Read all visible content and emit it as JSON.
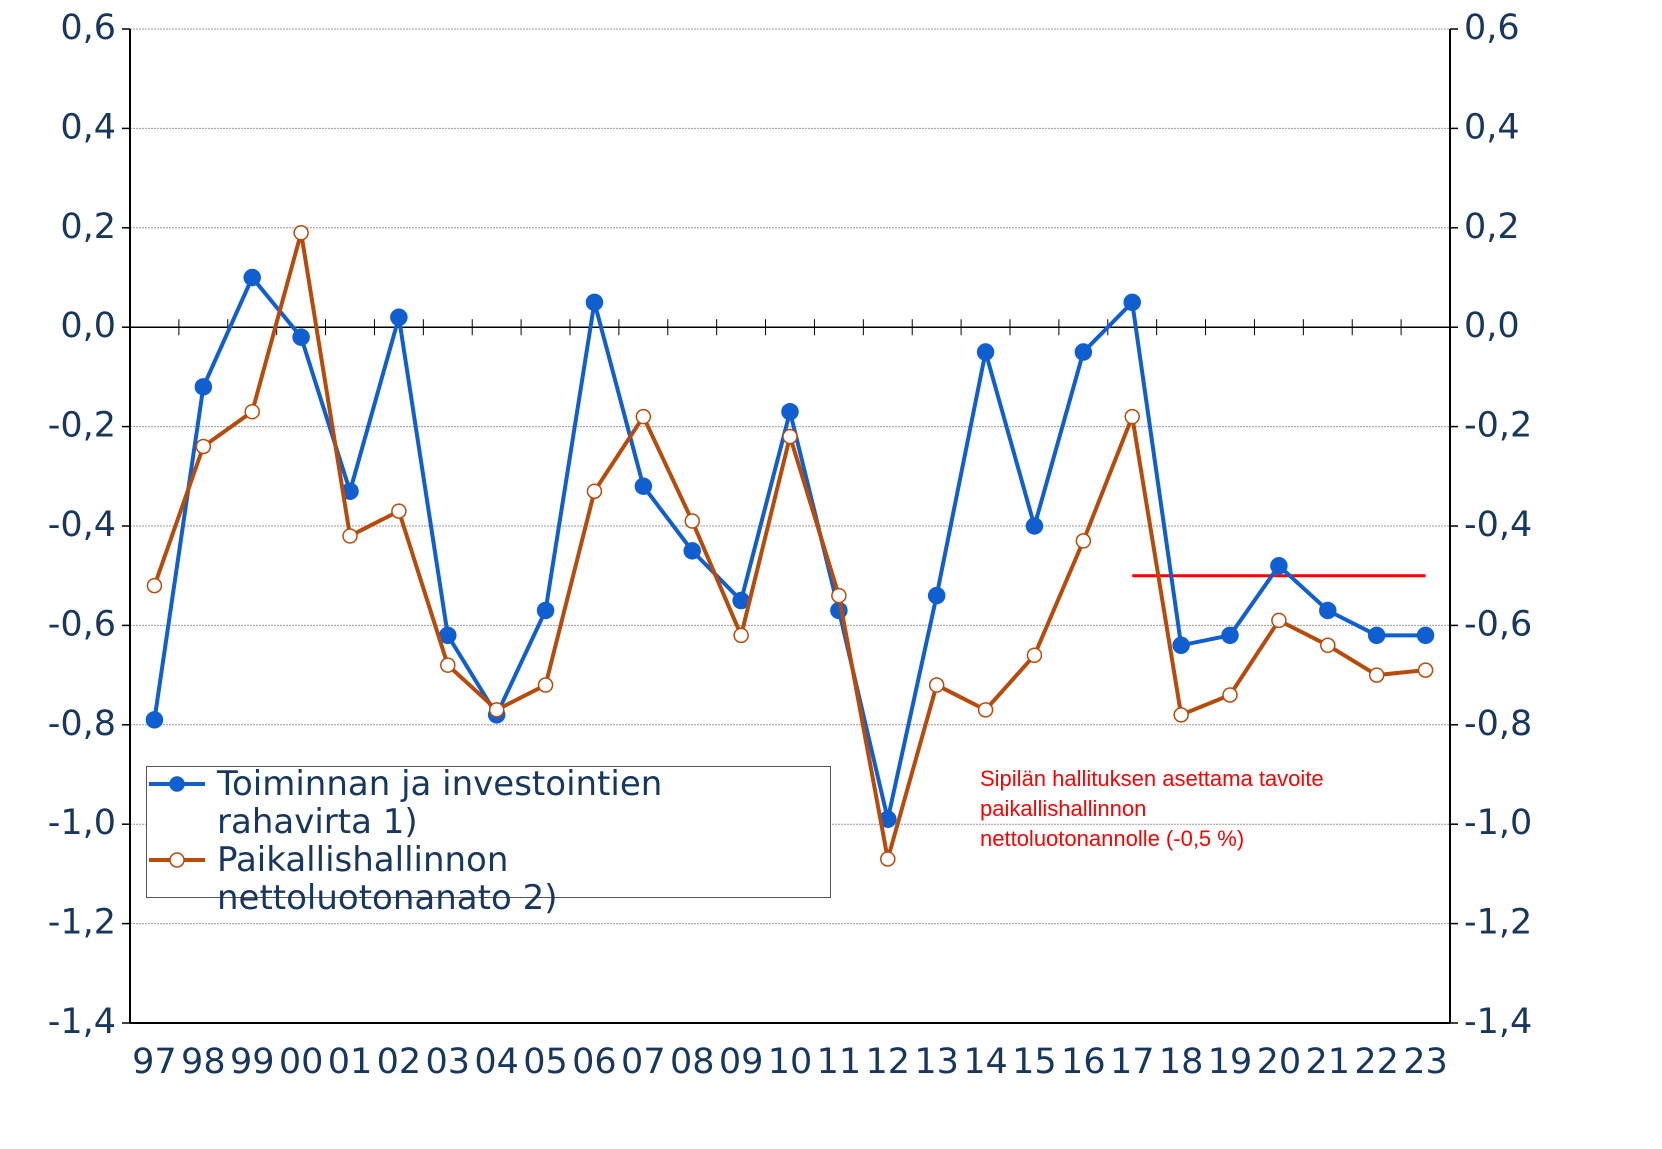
{
  "chart_data": {
    "type": "line",
    "categories": [
      "97",
      "98",
      "99",
      "00",
      "01",
      "02",
      "03",
      "04",
      "05",
      "06",
      "07",
      "08",
      "09",
      "10",
      "11",
      "12",
      "13",
      "14",
      "15",
      "16",
      "17",
      "18",
      "19",
      "20",
      "21",
      "22",
      "23"
    ],
    "series": [
      {
        "name": "Toiminnan ja investointien rahavirta 1)",
        "color": "#0f5fd0",
        "marker": "filled",
        "values": [
          -0.79,
          -0.12,
          0.1,
          -0.02,
          -0.33,
          0.02,
          -0.62,
          -0.78,
          -0.57,
          0.05,
          -0.32,
          -0.45,
          -0.55,
          -0.17,
          -0.57,
          -0.99,
          -0.54,
          -0.05,
          -0.4,
          -0.05,
          0.05,
          -0.64,
          -0.62,
          -0.48,
          -0.57,
          -0.62,
          -0.62
        ]
      },
      {
        "name": "Paikallishallinnon nettoluotonanato 2)",
        "color": "#b84a0a",
        "marker": "hollow",
        "values": [
          -0.52,
          -0.24,
          -0.17,
          0.19,
          -0.42,
          -0.37,
          -0.68,
          -0.77,
          -0.72,
          -0.33,
          -0.18,
          -0.39,
          -0.62,
          -0.22,
          -0.54,
          -1.07,
          -0.72,
          -0.77,
          -0.66,
          -0.43,
          -0.18,
          -0.78,
          -0.74,
          -0.59,
          -0.64,
          -0.7,
          -0.69
        ]
      }
    ],
    "ylim": [
      -1.4,
      0.6
    ],
    "yticks": [
      {
        "value": -1.4,
        "label": "-1,4"
      },
      {
        "value": -1.2,
        "label": "-1,2"
      },
      {
        "value": -1.0,
        "label": "-1,0"
      },
      {
        "value": -0.8,
        "label": "-0,8"
      },
      {
        "value": -0.6,
        "label": "-0,6"
      },
      {
        "value": -0.4,
        "label": "-0,4"
      },
      {
        "value": -0.2,
        "label": "-0,2"
      },
      {
        "value": 0,
        "label": "0,0"
      },
      {
        "value": 0.2,
        "label": "0,2"
      },
      {
        "value": 0.4,
        "label": "0,4"
      },
      {
        "value": 0.6,
        "label": "0,6"
      }
    ],
    "y2lim": [
      -1.4,
      0.6
    ],
    "y2ticks": [
      {
        "value": -1.4,
        "label": "-1,4"
      },
      {
        "value": -1.2,
        "label": "-1,2"
      },
      {
        "value": -1.0,
        "label": "-1,0"
      },
      {
        "value": -0.8,
        "label": "-0,8"
      },
      {
        "value": -0.6,
        "label": "-0,6"
      },
      {
        "value": -0.4,
        "label": "-0,4"
      },
      {
        "value": -0.2,
        "label": "-0,2"
      },
      {
        "value": 0,
        "label": "0,0"
      },
      {
        "value": 0.2,
        "label": "0,2"
      },
      {
        "value": 0.4,
        "label": "0,4"
      },
      {
        "value": 0.6,
        "label": "0,6"
      }
    ],
    "grid": true,
    "target_line": {
      "value": -0.5,
      "start": "17",
      "end": "23",
      "color": "#ff0000"
    },
    "annotation": [
      "Sipilän hallituksen asettama tavoite",
      "paikallishallinnon",
      "nettoluotonannolle (-0,5 %)"
    ]
  }
}
